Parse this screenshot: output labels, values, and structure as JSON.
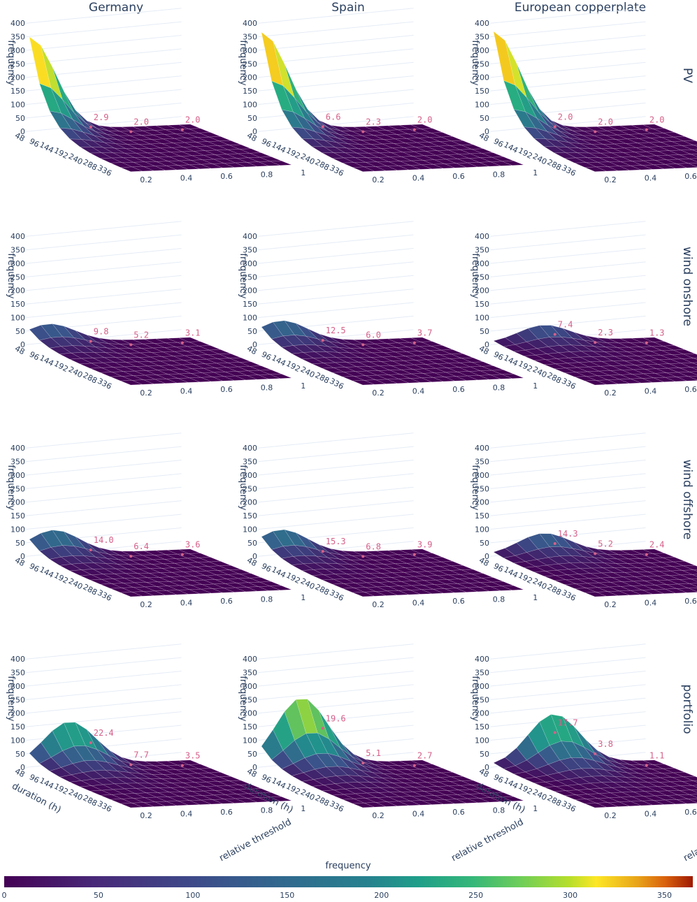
{
  "chart_data": {
    "type": "surface3d-grid",
    "columns": [
      "Germany",
      "Spain",
      "European copperplate"
    ],
    "rows": [
      "PV",
      "wind onshore",
      "wind offshore",
      "portfolio"
    ],
    "axes": {
      "x_title": "duration (h)",
      "x_ticks": [
        "48",
        "96",
        "144",
        "192",
        "240",
        "288",
        "336"
      ],
      "y_title": "relative threshold",
      "y_ticks": [
        "0.2",
        "0.4",
        "0.6",
        "0.8",
        "1"
      ],
      "z_title": "frequency",
      "z_ticks": [
        "0",
        "50",
        "100",
        "150",
        "200",
        "250",
        "300",
        "350",
        "400"
      ],
      "z_range": [
        0,
        400
      ]
    },
    "colorbar": {
      "title": "frequency",
      "ticks": [
        "0",
        "50",
        "100",
        "150",
        "200",
        "250",
        "300",
        "350"
      ],
      "range": [
        0,
        365
      ],
      "colorscale": "Viridis"
    },
    "panels": [
      {
        "row": "PV",
        "column": "Germany",
        "peak_frequency": 345,
        "peak_threshold": 0.2,
        "annotations": [
          "2.9",
          "2.0",
          "2.0"
        ]
      },
      {
        "row": "PV",
        "column": "Spain",
        "peak_frequency": 362,
        "peak_threshold": 0.2,
        "annotations": [
          "6.6",
          "2.3",
          "2.0"
        ]
      },
      {
        "row": "PV",
        "column": "European copperplate",
        "peak_frequency": 365,
        "peak_threshold": 0.2,
        "annotations": [
          "2.0",
          "2.0",
          "2.0"
        ]
      },
      {
        "row": "wind onshore",
        "column": "Germany",
        "peak_frequency": 70,
        "peak_threshold": 0.3,
        "annotations": [
          "9.8",
          "5.2",
          "3.1"
        ]
      },
      {
        "row": "wind onshore",
        "column": "Spain",
        "peak_frequency": 82,
        "peak_threshold": 0.3,
        "annotations": [
          "12.5",
          "6.0",
          "3.7"
        ]
      },
      {
        "row": "wind onshore",
        "column": "European copperplate",
        "peak_frequency": 62,
        "peak_threshold": 0.45,
        "annotations": [
          "7.4",
          "2.3",
          "1.3"
        ]
      },
      {
        "row": "wind offshore",
        "column": "Germany",
        "peak_frequency": 90,
        "peak_threshold": 0.32,
        "annotations": [
          "14.0",
          "6.4",
          "3.6"
        ]
      },
      {
        "row": "wind offshore",
        "column": "Spain",
        "peak_frequency": 92,
        "peak_threshold": 0.3,
        "annotations": [
          "15.3",
          "6.8",
          "3.9"
        ]
      },
      {
        "row": "wind offshore",
        "column": "European copperplate",
        "peak_frequency": 75,
        "peak_threshold": 0.45,
        "annotations": [
          "14.3",
          "5.2",
          "2.4"
        ]
      },
      {
        "row": "portfolio",
        "column": "Germany",
        "peak_frequency": 160,
        "peak_threshold": 0.4,
        "annotations": [
          "22.4",
          "7.7",
          "3.5"
        ]
      },
      {
        "row": "portfolio",
        "column": "Spain",
        "peak_frequency": 248,
        "peak_threshold": 0.4,
        "annotations": [
          "19.6",
          "5.1",
          "2.7"
        ]
      },
      {
        "row": "portfolio",
        "column": "European copperplate",
        "peak_frequency": 185,
        "peak_threshold": 0.5,
        "annotations": [
          "17.7",
          "3.8",
          "1.1"
        ]
      }
    ]
  }
}
